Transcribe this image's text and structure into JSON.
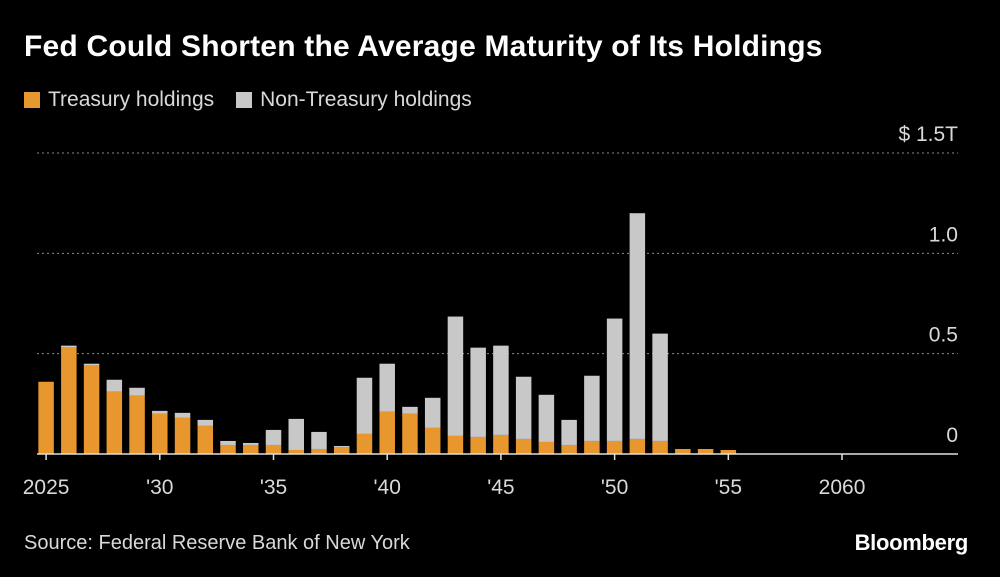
{
  "chart_data": {
    "type": "bar",
    "stacked": true,
    "title": "Fed Could Shorten the Average Maturity of Its Holdings",
    "categories": [
      "2025",
      "2026",
      "2027",
      "2028",
      "2029",
      "2030",
      "2031",
      "2032",
      "2033",
      "2034",
      "2035",
      "2036",
      "2037",
      "2038",
      "2039",
      "2040",
      "2041",
      "2042",
      "2043",
      "2044",
      "2045",
      "2046",
      "2047",
      "2048",
      "2049",
      "2050",
      "2051",
      "2052",
      "2053",
      "2054",
      "2055"
    ],
    "x_tick_labels": [
      {
        "year": 2025,
        "label": "2025"
      },
      {
        "year": 2030,
        "label": "'30"
      },
      {
        "year": 2035,
        "label": "'35"
      },
      {
        "year": 2040,
        "label": "'40"
      },
      {
        "year": 2045,
        "label": "'45"
      },
      {
        "year": 2050,
        "label": "'50"
      },
      {
        "year": 2055,
        "label": "'55"
      },
      {
        "year": 2060,
        "label": "2060"
      }
    ],
    "xlim": [
      2024.6,
      2065.1
    ],
    "series": [
      {
        "name": "Treasury holdings",
        "color": "#e8962e",
        "values": [
          0.36,
          0.53,
          0.44,
          0.31,
          0.29,
          0.2,
          0.18,
          0.14,
          0.045,
          0.045,
          0.045,
          0.02,
          0.025,
          0.035,
          0.1,
          0.21,
          0.2,
          0.13,
          0.09,
          0.085,
          0.095,
          0.075,
          0.06,
          0.045,
          0.065,
          0.065,
          0.075,
          0.065,
          0.025,
          0.025,
          0.02
        ]
      },
      {
        "name": "Non-Treasury holdings",
        "color": "#c8c8c8",
        "values": [
          0.0,
          0.01,
          0.01,
          0.06,
          0.04,
          0.015,
          0.025,
          0.03,
          0.02,
          0.01,
          0.075,
          0.155,
          0.085,
          0.005,
          0.28,
          0.24,
          0.035,
          0.15,
          0.595,
          0.445,
          0.445,
          0.31,
          0.235,
          0.125,
          0.325,
          0.61,
          1.125,
          0.535,
          0.0,
          0.0,
          0.0
        ]
      }
    ],
    "ylim": [
      0,
      1.5
    ],
    "y_ticks": [
      {
        "value": 0,
        "label": "0"
      },
      {
        "value": 0.5,
        "label": "0.5"
      },
      {
        "value": 1.0,
        "label": "1.0"
      },
      {
        "value": 1.5,
        "label": "$ 1.5T"
      }
    ],
    "xlabel": "",
    "ylabel": "",
    "grid": true,
    "legend": "top-left"
  },
  "footer": {
    "source": "Source: Federal Reserve Bank of New York",
    "brand": "Bloomberg"
  }
}
